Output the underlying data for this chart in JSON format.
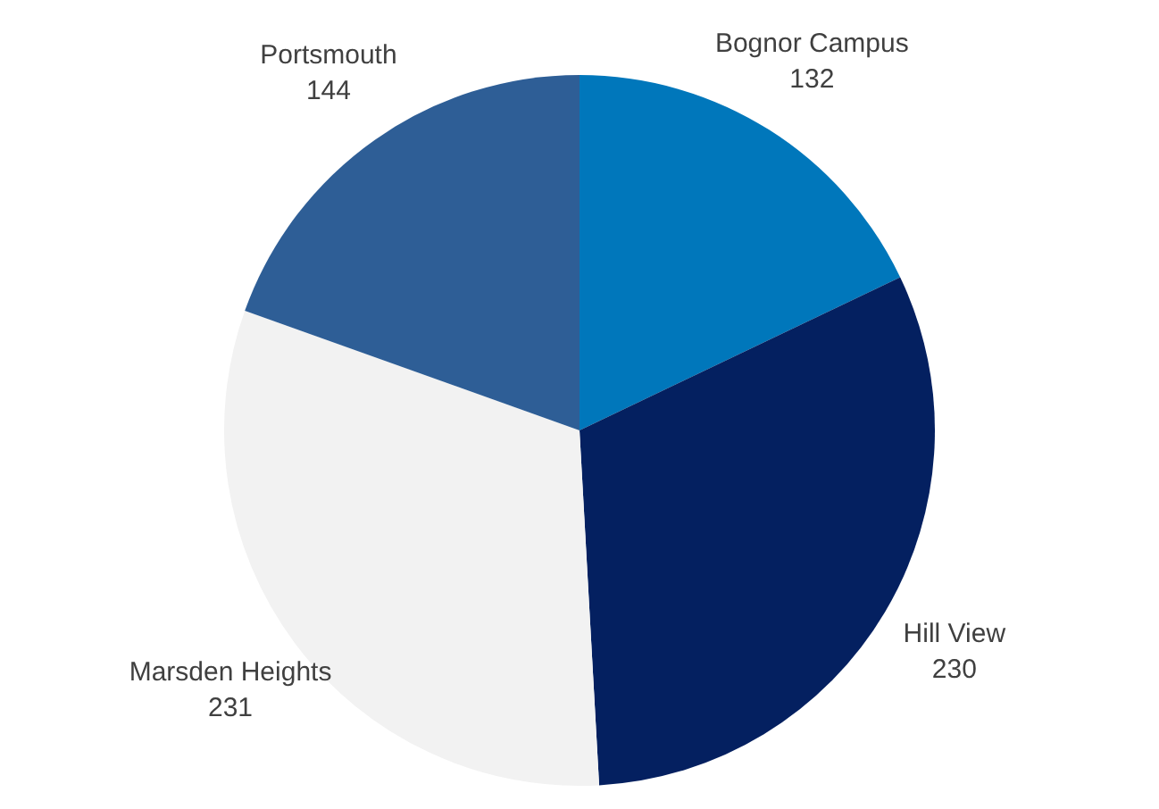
{
  "chart_data": {
    "type": "pie",
    "categories": [
      "Bognor Campus",
      "Hill View",
      "Marsden Heights",
      "Portsmouth"
    ],
    "values": [
      132,
      230,
      231,
      144
    ],
    "colors": [
      "#0077bb",
      "#042060",
      "#f2f2f2",
      "#2e5e96"
    ],
    "data_labels": true,
    "legend": false
  }
}
